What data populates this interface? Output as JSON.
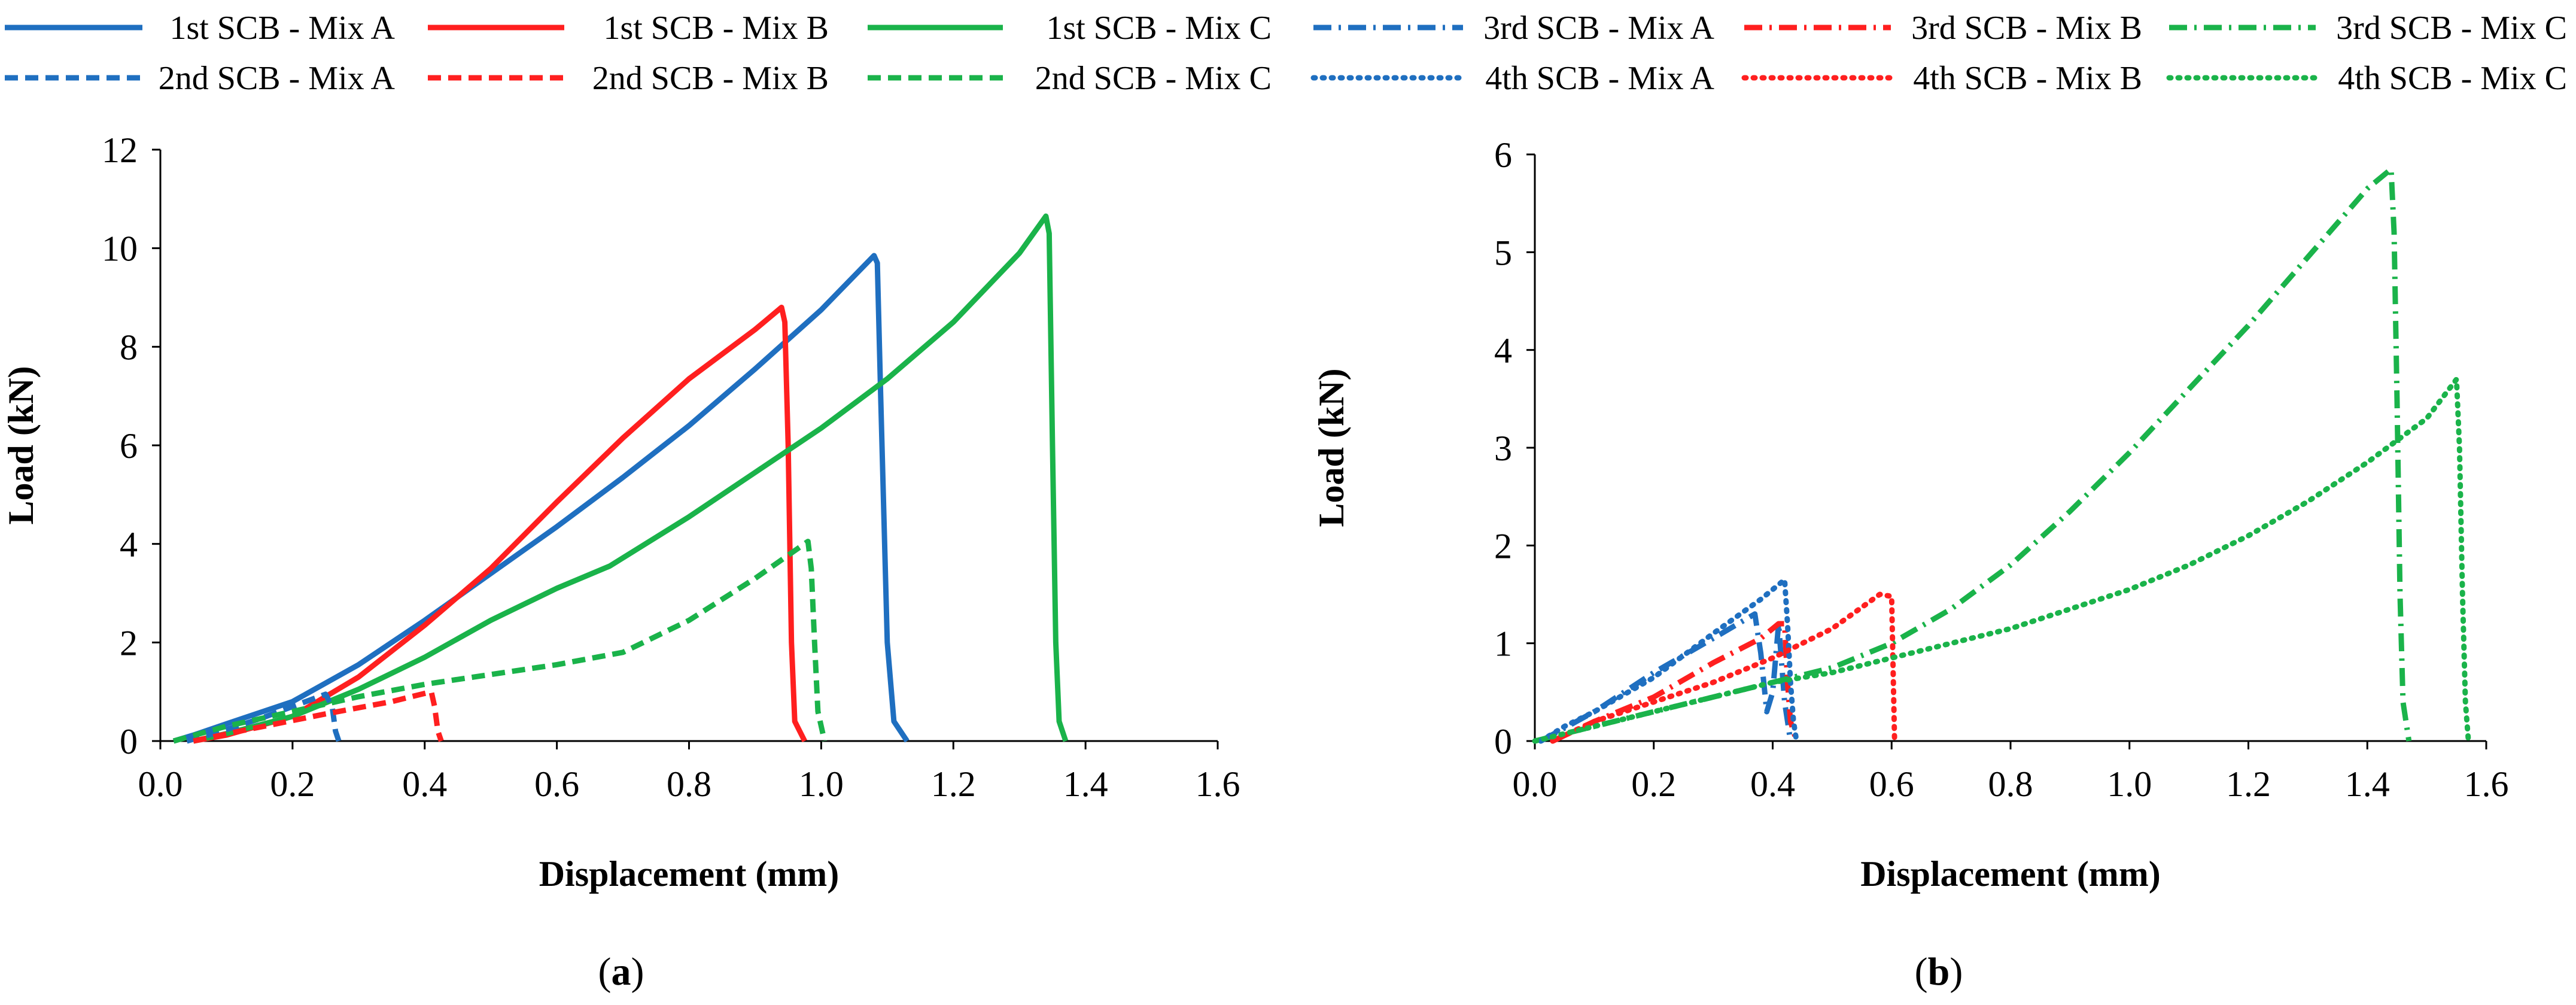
{
  "legend": [
    {
      "label": "1st SCB - Mix A",
      "color": "#1f6fc0",
      "dash": "solid"
    },
    {
      "label": "1st SCB - Mix B",
      "color": "#ff1f1f",
      "dash": "solid"
    },
    {
      "label": "1st SCB - Mix C",
      "color": "#1ab34a",
      "dash": "solid"
    },
    {
      "label": "3rd SCB - Mix A",
      "color": "#1f6fc0",
      "dash": "dashdot"
    },
    {
      "label": "3rd SCB - Mix B",
      "color": "#ff1f1f",
      "dash": "dashdot"
    },
    {
      "label": "3rd SCB - Mix C",
      "color": "#1ab34a",
      "dash": "dashdot"
    },
    {
      "label": "2nd SCB - Mix A",
      "color": "#1f6fc0",
      "dash": "dashed"
    },
    {
      "label": "2nd SCB - Mix B",
      "color": "#ff1f1f",
      "dash": "dashed"
    },
    {
      "label": "2nd SCB - Mix C",
      "color": "#1ab34a",
      "dash": "dashed"
    },
    {
      "label": "4th SCB - Mix A",
      "color": "#1f6fc0",
      "dash": "dotted"
    },
    {
      "label": "4th SCB - Mix B",
      "color": "#ff1f1f",
      "dash": "dotted"
    },
    {
      "label": "4th SCB - Mix C",
      "color": "#1ab34a",
      "dash": "dotted"
    }
  ],
  "chart_data": [
    {
      "type": "line",
      "panel_label": "(a)",
      "panel_letter": "a",
      "xlabel": "Displacement (mm)",
      "ylabel": "Load (kN)",
      "xlim": [
        0,
        1.6
      ],
      "ylim": [
        0,
        12
      ],
      "xticks": [
        0,
        0.2,
        0.4,
        0.6,
        0.8,
        1.0,
        1.2,
        1.4,
        1.6
      ],
      "yticks": [
        0,
        2,
        4,
        6,
        8,
        10,
        12
      ],
      "x_tick_labels": [
        "0.0",
        "0.2",
        "0.4",
        "0.6",
        "0.8",
        "1.0",
        "1.2",
        "1.4",
        "1.6"
      ],
      "y_tick_labels": [
        "0",
        "2",
        "4",
        "6",
        "8",
        "10",
        "12"
      ],
      "series": [
        {
          "name": "1st SCB - Mix A",
          "color": "#1f6fc0",
          "dash": "solid",
          "points": [
            [
              0.02,
              0
            ],
            [
              0.05,
              0.12
            ],
            [
              0.1,
              0.35
            ],
            [
              0.2,
              0.8
            ],
            [
              0.3,
              1.55
            ],
            [
              0.4,
              2.45
            ],
            [
              0.5,
              3.4
            ],
            [
              0.6,
              4.35
            ],
            [
              0.7,
              5.35
            ],
            [
              0.8,
              6.4
            ],
            [
              0.9,
              7.55
            ],
            [
              1.0,
              8.75
            ],
            [
              1.08,
              9.85
            ],
            [
              1.085,
              9.7
            ],
            [
              1.09,
              7
            ],
            [
              1.1,
              2
            ],
            [
              1.11,
              0.4
            ],
            [
              1.13,
              0
            ]
          ]
        },
        {
          "name": "1st SCB - Mix B",
          "color": "#ff1f1f",
          "dash": "solid",
          "points": [
            [
              0.05,
              0
            ],
            [
              0.1,
              0.12
            ],
            [
              0.2,
              0.5
            ],
            [
              0.3,
              1.3
            ],
            [
              0.4,
              2.35
            ],
            [
              0.5,
              3.5
            ],
            [
              0.6,
              4.85
            ],
            [
              0.7,
              6.15
            ],
            [
              0.8,
              7.35
            ],
            [
              0.9,
              8.35
            ],
            [
              0.94,
              8.8
            ],
            [
              0.945,
              8.5
            ],
            [
              0.95,
              6
            ],
            [
              0.955,
              2
            ],
            [
              0.96,
              0.4
            ],
            [
              0.975,
              0
            ]
          ]
        },
        {
          "name": "1st SCB - Mix C",
          "color": "#1ab34a",
          "dash": "solid",
          "points": [
            [
              0.05,
              0
            ],
            [
              0.1,
              0.15
            ],
            [
              0.2,
              0.5
            ],
            [
              0.3,
              1.05
            ],
            [
              0.4,
              1.7
            ],
            [
              0.5,
              2.45
            ],
            [
              0.6,
              3.1
            ],
            [
              0.68,
              3.55
            ],
            [
              0.8,
              4.55
            ],
            [
              0.9,
              5.45
            ],
            [
              1.0,
              6.35
            ],
            [
              1.1,
              7.35
            ],
            [
              1.2,
              8.5
            ],
            [
              1.3,
              9.9
            ],
            [
              1.34,
              10.65
            ],
            [
              1.345,
              10.3
            ],
            [
              1.35,
              6
            ],
            [
              1.355,
              2
            ],
            [
              1.36,
              0.4
            ],
            [
              1.37,
              0
            ]
          ]
        },
        {
          "name": "2nd SCB - Mix A",
          "color": "#1f6fc0",
          "dash": "dashed",
          "points": [
            [
              0.04,
              0
            ],
            [
              0.08,
              0.15
            ],
            [
              0.15,
              0.45
            ],
            [
              0.22,
              0.8
            ],
            [
              0.25,
              0.95
            ],
            [
              0.26,
              0.7
            ],
            [
              0.265,
              0.2
            ],
            [
              0.27,
              0
            ]
          ]
        },
        {
          "name": "2nd SCB - Mix B",
          "color": "#ff1f1f",
          "dash": "dashed",
          "points": [
            [
              0.05,
              0
            ],
            [
              0.12,
              0.2
            ],
            [
              0.25,
              0.55
            ],
            [
              0.35,
              0.8
            ],
            [
              0.41,
              1.0
            ],
            [
              0.415,
              0.7
            ],
            [
              0.42,
              0.2
            ],
            [
              0.425,
              0
            ]
          ]
        },
        {
          "name": "2nd SCB - Mix C",
          "color": "#1ab34a",
          "dash": "dashed",
          "points": [
            [
              0.02,
              0
            ],
            [
              0.1,
              0.3
            ],
            [
              0.2,
              0.6
            ],
            [
              0.3,
              0.9
            ],
            [
              0.4,
              1.15
            ],
            [
              0.5,
              1.35
            ],
            [
              0.6,
              1.55
            ],
            [
              0.7,
              1.8
            ],
            [
              0.8,
              2.45
            ],
            [
              0.9,
              3.3
            ],
            [
              0.98,
              4.05
            ],
            [
              0.985,
              3.5
            ],
            [
              0.99,
              2
            ],
            [
              0.995,
              0.6
            ],
            [
              1.005,
              0
            ]
          ]
        }
      ]
    },
    {
      "type": "line",
      "panel_label": "(b)",
      "panel_letter": "b",
      "xlabel": "Displacement (mm)",
      "ylabel": "Load (kN)",
      "xlim": [
        0,
        1.6
      ],
      "ylim": [
        0,
        6
      ],
      "xticks": [
        0,
        0.2,
        0.4,
        0.6,
        0.8,
        1.0,
        1.2,
        1.4,
        1.6
      ],
      "yticks": [
        0,
        1,
        2,
        3,
        4,
        5,
        6
      ],
      "x_tick_labels": [
        "0.0",
        "0.2",
        "0.4",
        "0.6",
        "0.8",
        "1.0",
        "1.2",
        "1.4",
        "1.6"
      ],
      "y_tick_labels": [
        "0",
        "1",
        "2",
        "3",
        "4",
        "5",
        "6"
      ],
      "series": [
        {
          "name": "3rd SCB - Mix A",
          "color": "#1f6fc0",
          "dash": "dashdot",
          "points": [
            [
              0.01,
              0
            ],
            [
              0.1,
              0.3
            ],
            [
              0.2,
              0.7
            ],
            [
              0.3,
              1.05
            ],
            [
              0.37,
              1.3
            ],
            [
              0.38,
              0.9
            ],
            [
              0.39,
              0.3
            ],
            [
              0.4,
              0.5
            ],
            [
              0.41,
              1.2
            ],
            [
              0.42,
              0.4
            ],
            [
              0.43,
              0
            ]
          ]
        },
        {
          "name": "3rd SCB - Mix B",
          "color": "#ff1f1f",
          "dash": "dashdot",
          "points": [
            [
              0.03,
              0
            ],
            [
              0.1,
              0.2
            ],
            [
              0.2,
              0.45
            ],
            [
              0.3,
              0.8
            ],
            [
              0.38,
              1.05
            ],
            [
              0.41,
              1.2
            ],
            [
              0.42,
              1.2
            ],
            [
              0.425,
              0.6
            ],
            [
              0.43,
              0.2
            ],
            [
              0.44,
              0
            ]
          ]
        },
        {
          "name": "3rd SCB - Mix C",
          "color": "#1ab34a",
          "dash": "dashdot",
          "points": [
            [
              0,
              0
            ],
            [
              0.1,
              0.15
            ],
            [
              0.2,
              0.3
            ],
            [
              0.3,
              0.45
            ],
            [
              0.4,
              0.6
            ],
            [
              0.5,
              0.75
            ],
            [
              0.6,
              1.0
            ],
            [
              0.7,
              1.35
            ],
            [
              0.8,
              1.8
            ],
            [
              0.9,
              2.35
            ],
            [
              1.0,
              2.95
            ],
            [
              1.1,
              3.6
            ],
            [
              1.2,
              4.25
            ],
            [
              1.3,
              4.95
            ],
            [
              1.4,
              5.65
            ],
            [
              1.44,
              5.85
            ],
            [
              1.445,
              5.2
            ],
            [
              1.45,
              3.5
            ],
            [
              1.455,
              1.5
            ],
            [
              1.46,
              0.4
            ],
            [
              1.47,
              0
            ]
          ]
        },
        {
          "name": "4th SCB - Mix A",
          "color": "#1f6fc0",
          "dash": "dotted",
          "points": [
            [
              0.01,
              0
            ],
            [
              0.05,
              0.15
            ],
            [
              0.1,
              0.3
            ],
            [
              0.2,
              0.65
            ],
            [
              0.3,
              1.1
            ],
            [
              0.38,
              1.45
            ],
            [
              0.42,
              1.65
            ],
            [
              0.425,
              1.2
            ],
            [
              0.43,
              0.6
            ],
            [
              0.435,
              0.2
            ],
            [
              0.44,
              0
            ]
          ]
        },
        {
          "name": "4th SCB - Mix B",
          "color": "#ff1f1f",
          "dash": "dotted",
          "points": [
            [
              0.03,
              0
            ],
            [
              0.1,
              0.2
            ],
            [
              0.2,
              0.4
            ],
            [
              0.3,
              0.6
            ],
            [
              0.4,
              0.85
            ],
            [
              0.5,
              1.15
            ],
            [
              0.58,
              1.5
            ],
            [
              0.6,
              1.48
            ],
            [
              0.602,
              0.9
            ],
            [
              0.604,
              0.3
            ],
            [
              0.605,
              0
            ]
          ]
        },
        {
          "name": "4th SCB - Mix C",
          "color": "#1ab34a",
          "dash": "dotted",
          "points": [
            [
              0,
              0
            ],
            [
              0.1,
              0.15
            ],
            [
              0.2,
              0.3
            ],
            [
              0.3,
              0.45
            ],
            [
              0.4,
              0.6
            ],
            [
              0.5,
              0.7
            ],
            [
              0.6,
              0.85
            ],
            [
              0.8,
              1.15
            ],
            [
              1.0,
              1.55
            ],
            [
              1.1,
              1.8
            ],
            [
              1.2,
              2.1
            ],
            [
              1.3,
              2.45
            ],
            [
              1.4,
              2.85
            ],
            [
              1.5,
              3.3
            ],
            [
              1.55,
              3.7
            ],
            [
              1.555,
              3.0
            ],
            [
              1.56,
              1.5
            ],
            [
              1.565,
              0.4
            ],
            [
              1.57,
              0
            ]
          ]
        }
      ]
    }
  ]
}
